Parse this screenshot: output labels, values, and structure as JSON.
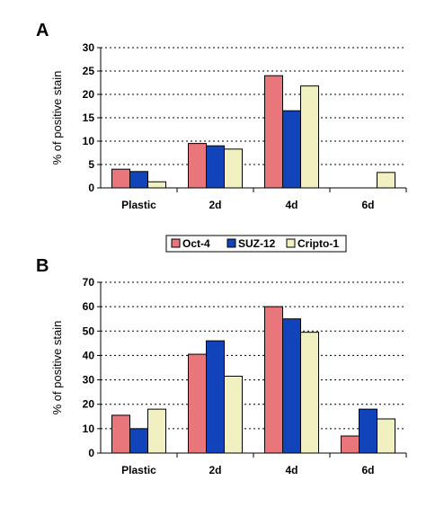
{
  "chart_data": [
    {
      "type": "bar",
      "panel_label": "A",
      "ylabel": "% of positive stain",
      "ylim": [
        0,
        30
      ],
      "yticks": [
        0,
        5,
        10,
        15,
        20,
        25,
        30
      ],
      "grid": "horizontal-dotted",
      "categories": [
        "Plastic",
        "2d",
        "4d",
        "6d"
      ],
      "series": [
        {
          "name": "Oct-4",
          "color": "#e8767b",
          "values": [
            4,
            9.5,
            24,
            0
          ]
        },
        {
          "name": "SUZ-12",
          "color": "#1144bb",
          "values": [
            3.5,
            9,
            16.5,
            0
          ]
        },
        {
          "name": "Cripto-1",
          "color": "#f0f0c0",
          "values": [
            1.3,
            8.3,
            21.8,
            3.3
          ]
        }
      ]
    },
    {
      "type": "bar",
      "panel_label": "B",
      "ylabel": "% of positive stain",
      "ylim": [
        0,
        70
      ],
      "yticks": [
        0,
        10,
        20,
        30,
        40,
        50,
        60,
        70
      ],
      "grid": "horizontal-dotted",
      "categories": [
        "Plastic",
        "2d",
        "4d",
        "6d"
      ],
      "series": [
        {
          "name": "Oct-4",
          "color": "#e8767b",
          "values": [
            15.5,
            40.5,
            60,
            7
          ]
        },
        {
          "name": "SUZ-12",
          "color": "#1144bb",
          "values": [
            10,
            46,
            55,
            18
          ]
        },
        {
          "name": "Cripto-1",
          "color": "#f0f0c0",
          "values": [
            18,
            31.5,
            49.5,
            14
          ]
        }
      ]
    }
  ],
  "legend": {
    "placement": "between-panels",
    "items": [
      "Oct-4",
      "SUZ-12",
      "Cripto-1"
    ]
  }
}
